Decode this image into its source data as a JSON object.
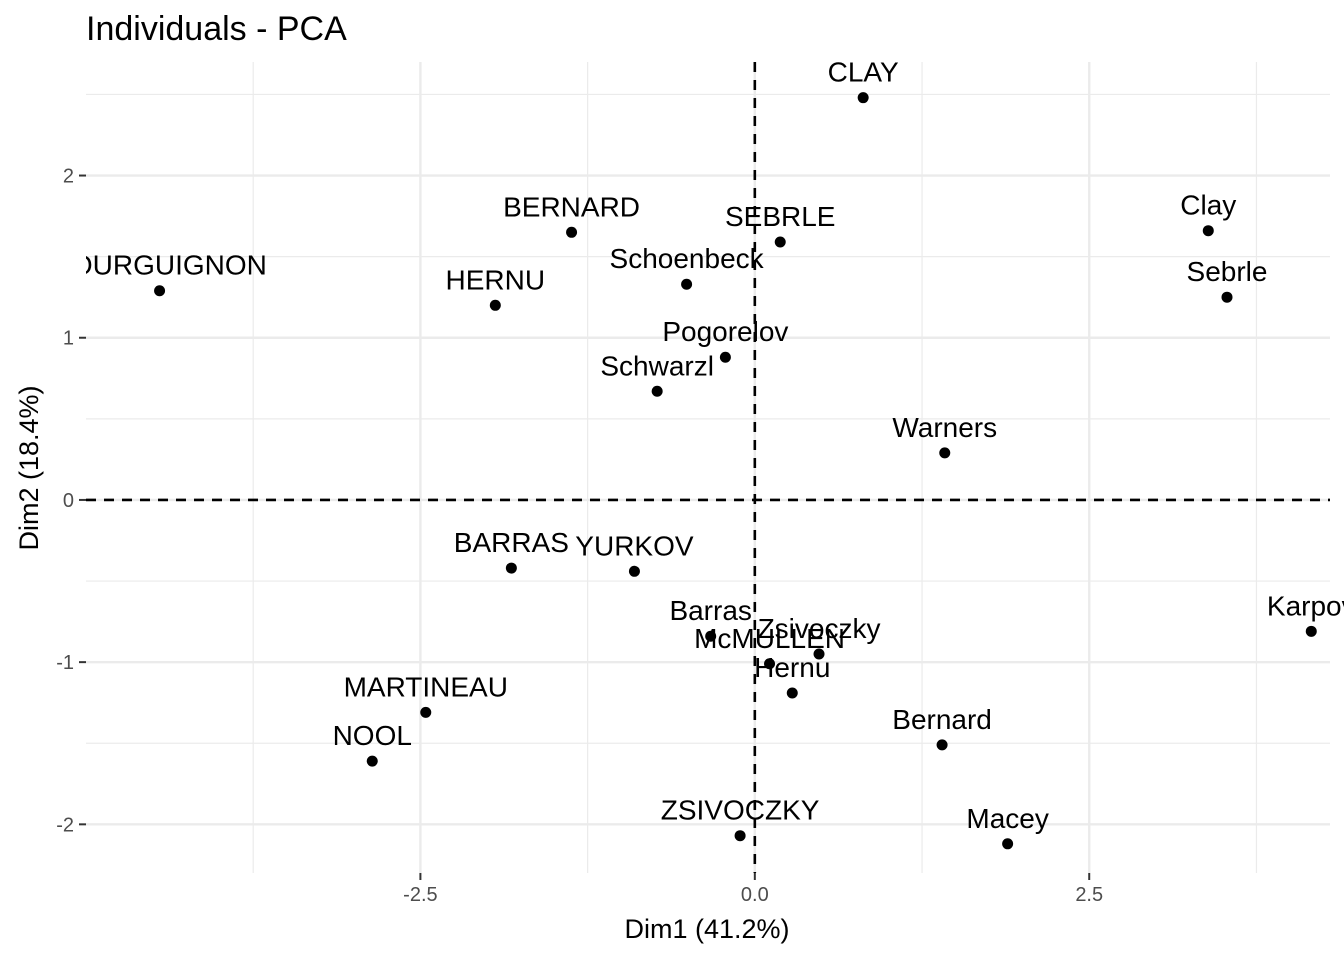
{
  "chart_data": {
    "type": "scatter",
    "title": "Individuals - PCA",
    "xlabel": "Dim1 (41.2%)",
    "ylabel": "Dim2 (18.4%)",
    "xlim": [
      -5.0,
      4.3
    ],
    "ylim": [
      -2.3,
      2.7
    ],
    "x_ticks": [
      {
        "value": -2.5,
        "label": "-2.5"
      },
      {
        "value": 0,
        "label": "0.0"
      },
      {
        "value": 2.5,
        "label": "2.5"
      }
    ],
    "y_ticks": [
      {
        "value": -2,
        "label": "-2"
      },
      {
        "value": -1,
        "label": "-1"
      },
      {
        "value": 0,
        "label": "0"
      },
      {
        "value": 1,
        "label": "1"
      },
      {
        "value": 2,
        "label": "2"
      }
    ],
    "reference_lines": {
      "x": 0,
      "y": 0,
      "style": "dashed"
    },
    "grid": true,
    "points": [
      {
        "label": "CLAY",
        "x": 0.81,
        "y": 2.48
      },
      {
        "label": "BERNARD",
        "x": -1.37,
        "y": 1.65
      },
      {
        "label": "SEBRLE",
        "x": 0.19,
        "y": 1.59
      },
      {
        "label": "Clay",
        "x": 3.39,
        "y": 1.66
      },
      {
        "label": "BOURGUIGNON",
        "x": -4.45,
        "y": 1.29
      },
      {
        "label": "HERNU",
        "x": -1.94,
        "y": 1.2
      },
      {
        "label": "Schoenbeck",
        "x": -0.51,
        "y": 1.33
      },
      {
        "label": "Sebrle",
        "x": 3.53,
        "y": 1.25
      },
      {
        "label": "Pogorelov",
        "x": -0.22,
        "y": 0.88
      },
      {
        "label": "Schwarzl",
        "x": -0.73,
        "y": 0.67
      },
      {
        "label": "Warners",
        "x": 1.42,
        "y": 0.29
      },
      {
        "label": "BARRAS",
        "x": -1.82,
        "y": -0.42
      },
      {
        "label": "YURKOV",
        "x": -0.9,
        "y": -0.44
      },
      {
        "label": "Karpov",
        "x": 4.16,
        "y": -0.81
      },
      {
        "label": "Barras",
        "x": -0.33,
        "y": -0.84
      },
      {
        "label": "Zsivoczky",
        "x": 0.48,
        "y": -0.95
      },
      {
        "label": "McMULLEN",
        "x": 0.11,
        "y": -1.01
      },
      {
        "label": "Hernu",
        "x": 0.28,
        "y": -1.19
      },
      {
        "label": "MARTINEAU",
        "x": -2.46,
        "y": -1.31
      },
      {
        "label": "Bernard",
        "x": 1.4,
        "y": -1.51
      },
      {
        "label": "NOOL",
        "x": -2.86,
        "y": -1.61
      },
      {
        "label": "ZSIVOCZKY",
        "x": -0.11,
        "y": -2.07
      },
      {
        "label": "Macey",
        "x": 1.89,
        "y": -2.12
      }
    ]
  }
}
